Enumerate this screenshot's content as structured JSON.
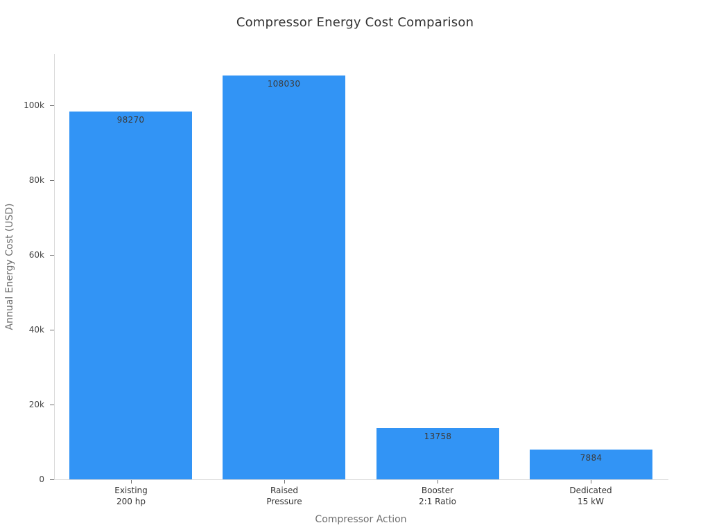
{
  "chart_data": {
    "type": "bar",
    "title": "Compressor Energy Cost Comparison",
    "xlabel": "Compressor Action",
    "ylabel": "Annual Energy Cost (USD)",
    "categories": [
      [
        "Existing",
        "200 hp"
      ],
      [
        "Raised",
        "Pressure"
      ],
      [
        "Booster",
        "2:1 Ratio"
      ],
      [
        "Dedicated",
        "15 kW"
      ]
    ],
    "values": [
      98270,
      108030,
      13758,
      7884
    ],
    "bar_labels": [
      "98270",
      "108030",
      "13758",
      "7884"
    ],
    "ylim": [
      0,
      113700
    ],
    "yticks": [
      {
        "value": 0,
        "label": "0"
      },
      {
        "value": 20000,
        "label": "20k"
      },
      {
        "value": 40000,
        "label": "40k"
      },
      {
        "value": 60000,
        "label": "60k"
      },
      {
        "value": 80000,
        "label": "80k"
      },
      {
        "value": 100000,
        "label": "100k"
      }
    ],
    "grid": false,
    "legend": "none",
    "bar_color": "#3294F5",
    "value_label_position": "inside-top"
  },
  "colors": {
    "background": "#ffffff",
    "bar": "#3294F5",
    "axis_line": "#d9d9d9",
    "tick_mark": "#6e6e6e",
    "tick_label": "#444444",
    "category_label": "#333333",
    "axis_title": "#6e6e6e",
    "title": "#333333",
    "value_label": "#3b3b3b"
  }
}
